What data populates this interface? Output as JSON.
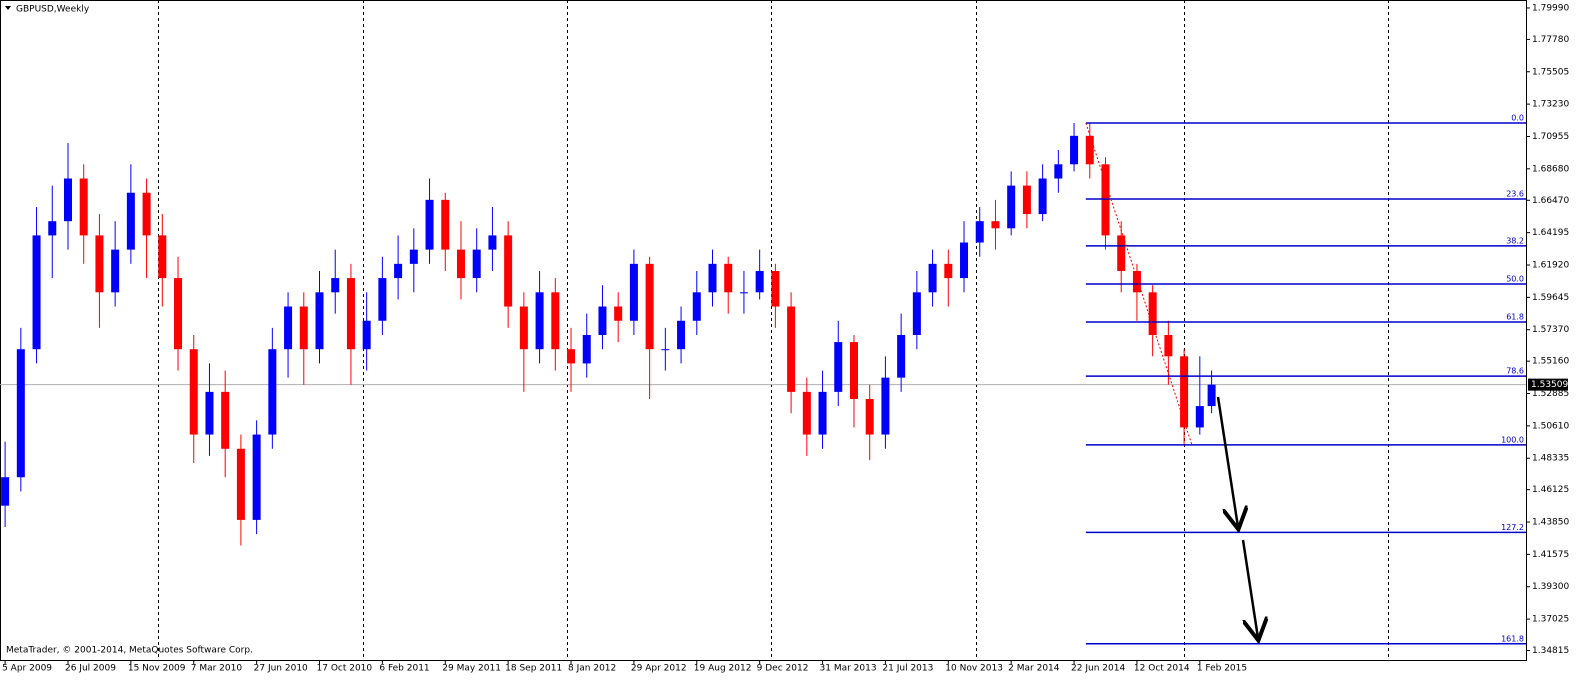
{
  "chart_data": {
    "type": "candlestick",
    "title": "GBPUSD,Weekly",
    "footnote": "MetaTrader, © 2001-2014, MetaQuotes Software Corp.",
    "up_color": "#0000ff",
    "down_color": "#ff0000",
    "xlim": [
      -1.3,
      387
    ],
    "ylim": [
      1.3415,
      1.8055
    ],
    "xticks": [
      {
        "value": 0,
        "label": "5 Apr 2009"
      },
      {
        "value": 16,
        "label": "26 Jul 2009"
      },
      {
        "value": 32,
        "label": "15 Nov 2009"
      },
      {
        "value": 48,
        "label": "7 Mar 2010"
      },
      {
        "value": 64,
        "label": "27 Jun 2010"
      },
      {
        "value": 80,
        "label": "17 Oct 2010"
      },
      {
        "value": 96,
        "label": "6 Feb 2011"
      },
      {
        "value": 112,
        "label": "29 May 2011"
      },
      {
        "value": 128,
        "label": "18 Sep 2011"
      },
      {
        "value": 144,
        "label": "8 Jan 2012"
      },
      {
        "value": 160,
        "label": "29 Apr 2012"
      },
      {
        "value": 176,
        "label": "19 Aug 2012"
      },
      {
        "value": 192,
        "label": "9 Dec 2012"
      },
      {
        "value": 208,
        "label": "31 Mar 2013"
      },
      {
        "value": 224,
        "label": "21 Jul 2013"
      },
      {
        "value": 240,
        "label": "10 Nov 2013"
      },
      {
        "value": 256,
        "label": "2 Mar 2014"
      },
      {
        "value": 272,
        "label": "22 Jun 2014"
      },
      {
        "value": 288,
        "label": "12 Oct 2014"
      },
      {
        "value": 304,
        "label": "1 Feb 2015"
      }
    ],
    "xgrid": [
      39,
      91,
      143,
      195,
      247,
      300,
      352
    ],
    "yticks": [
      {
        "value": 1.7999,
        "label": "1.79990"
      },
      {
        "value": 1.7778,
        "label": "1.77780"
      },
      {
        "value": 1.75505,
        "label": "1.75505"
      },
      {
        "value": 1.7323,
        "label": "1.73230"
      },
      {
        "value": 1.70955,
        "label": "1.70955"
      },
      {
        "value": 1.6868,
        "label": "1.68680"
      },
      {
        "value": 1.6647,
        "label": "1.66470"
      },
      {
        "value": 1.64195,
        "label": "1.64195"
      },
      {
        "value": 1.6192,
        "label": "1.61920"
      },
      {
        "value": 1.59645,
        "label": "1.59645"
      },
      {
        "value": 1.5737,
        "label": "1.57370"
      },
      {
        "value": 1.5516,
        "label": "1.55160"
      },
      {
        "value": 1.52885,
        "label": "1.52885"
      },
      {
        "value": 1.5061,
        "label": "1.50610"
      },
      {
        "value": 1.48335,
        "label": "1.48335"
      },
      {
        "value": 1.46125,
        "label": "1.46125"
      },
      {
        "value": 1.4385,
        "label": "1.43850"
      },
      {
        "value": 1.41575,
        "label": "1.41575"
      },
      {
        "value": 1.393,
        "label": "1.39300"
      },
      {
        "value": 1.37025,
        "label": "1.37025"
      },
      {
        "value": 1.34815,
        "label": "1.34815"
      }
    ],
    "current_price": 1.53509,
    "candles": {
      "x": [
        0,
        4,
        8,
        12,
        16,
        20,
        24,
        28,
        32,
        36,
        40,
        44,
        48,
        52,
        56,
        60,
        64,
        68,
        72,
        76,
        80,
        84,
        88,
        92,
        96,
        100,
        104,
        108,
        112,
        116,
        120,
        124,
        128,
        132,
        136,
        140,
        144,
        148,
        152,
        156,
        160,
        164,
        168,
        172,
        176,
        180,
        184,
        188,
        192,
        196,
        200,
        204,
        208,
        212,
        216,
        220,
        224,
        228,
        232,
        236,
        240,
        244,
        248,
        252,
        256,
        260,
        264,
        268,
        272,
        276,
        280,
        284,
        288,
        292,
        296,
        300,
        304,
        307
      ],
      "open": [
        1.45,
        1.47,
        1.56,
        1.64,
        1.65,
        1.68,
        1.64,
        1.6,
        1.63,
        1.67,
        1.64,
        1.61,
        1.56,
        1.5,
        1.53,
        1.49,
        1.44,
        1.5,
        1.56,
        1.59,
        1.56,
        1.6,
        1.61,
        1.56,
        1.58,
        1.61,
        1.62,
        1.63,
        1.665,
        1.63,
        1.61,
        1.63,
        1.64,
        1.59,
        1.56,
        1.6,
        1.56,
        1.55,
        1.57,
        1.59,
        1.58,
        1.62,
        1.56,
        1.56,
        1.58,
        1.6,
        1.62,
        1.6,
        1.6,
        1.615,
        1.59,
        1.53,
        1.5,
        1.53,
        1.565,
        1.525,
        1.5,
        1.54,
        1.57,
        1.6,
        1.62,
        1.61,
        1.635,
        1.65,
        1.645,
        1.675,
        1.655,
        1.68,
        1.69,
        1.71,
        1.69,
        1.64,
        1.615,
        1.6,
        1.57,
        1.555,
        1.505,
        1.52
      ],
      "high": [
        1.495,
        1.575,
        1.66,
        1.675,
        1.705,
        1.69,
        1.655,
        1.65,
        1.69,
        1.68,
        1.655,
        1.625,
        1.57,
        1.55,
        1.545,
        1.5,
        1.51,
        1.575,
        1.6,
        1.6,
        1.615,
        1.63,
        1.62,
        1.6,
        1.625,
        1.64,
        1.645,
        1.68,
        1.67,
        1.65,
        1.645,
        1.66,
        1.65,
        1.6,
        1.615,
        1.61,
        1.575,
        1.585,
        1.605,
        1.6,
        1.63,
        1.625,
        1.575,
        1.59,
        1.615,
        1.63,
        1.625,
        1.615,
        1.63,
        1.62,
        1.6,
        1.54,
        1.545,
        1.58,
        1.57,
        1.535,
        1.555,
        1.585,
        1.615,
        1.63,
        1.63,
        1.65,
        1.66,
        1.665,
        1.685,
        1.685,
        1.69,
        1.7,
        1.719,
        1.719,
        1.695,
        1.65,
        1.62,
        1.605,
        1.58,
        1.56,
        1.555,
        1.545
      ],
      "low": [
        1.435,
        1.46,
        1.55,
        1.61,
        1.63,
        1.62,
        1.575,
        1.59,
        1.62,
        1.61,
        1.59,
        1.545,
        1.48,
        1.485,
        1.47,
        1.422,
        1.43,
        1.49,
        1.54,
        1.535,
        1.55,
        1.585,
        1.535,
        1.545,
        1.57,
        1.595,
        1.6,
        1.62,
        1.615,
        1.595,
        1.6,
        1.615,
        1.575,
        1.53,
        1.55,
        1.545,
        1.53,
        1.54,
        1.56,
        1.565,
        1.57,
        1.525,
        1.545,
        1.55,
        1.57,
        1.59,
        1.585,
        1.585,
        1.595,
        1.575,
        1.515,
        1.485,
        1.49,
        1.52,
        1.505,
        1.482,
        1.49,
        1.53,
        1.56,
        1.59,
        1.59,
        1.6,
        1.625,
        1.63,
        1.64,
        1.645,
        1.65,
        1.67,
        1.685,
        1.68,
        1.63,
        1.6,
        1.58,
        1.555,
        1.535,
        1.493,
        1.5,
        1.515
      ],
      "close": [
        1.47,
        1.56,
        1.64,
        1.65,
        1.68,
        1.64,
        1.6,
        1.63,
        1.67,
        1.64,
        1.61,
        1.56,
        1.5,
        1.53,
        1.49,
        1.44,
        1.5,
        1.56,
        1.59,
        1.56,
        1.6,
        1.61,
        1.56,
        1.58,
        1.61,
        1.62,
        1.63,
        1.665,
        1.63,
        1.61,
        1.63,
        1.64,
        1.59,
        1.56,
        1.6,
        1.56,
        1.55,
        1.57,
        1.59,
        1.58,
        1.62,
        1.56,
        1.56,
        1.58,
        1.6,
        1.62,
        1.6,
        1.6,
        1.615,
        1.59,
        1.53,
        1.5,
        1.53,
        1.565,
        1.525,
        1.5,
        1.54,
        1.57,
        1.6,
        1.62,
        1.61,
        1.635,
        1.65,
        1.645,
        1.675,
        1.655,
        1.68,
        1.69,
        1.71,
        1.69,
        1.64,
        1.615,
        1.6,
        1.57,
        1.555,
        1.505,
        1.52,
        1.53509
      ]
    },
    "fibonacci": {
      "color": "#0000cc",
      "anchor_x": [
        275,
        302
      ],
      "labels": [
        "0.0",
        "23.6",
        "38.2",
        "50.0",
        "61.8",
        "78.6",
        "100.0",
        "127.2",
        "161.8"
      ],
      "prices": [
        1.719,
        1.6656,
        1.6326,
        1.6058,
        1.5791,
        1.5411,
        1.4927,
        1.4312,
        1.3529
      ]
    }
  }
}
